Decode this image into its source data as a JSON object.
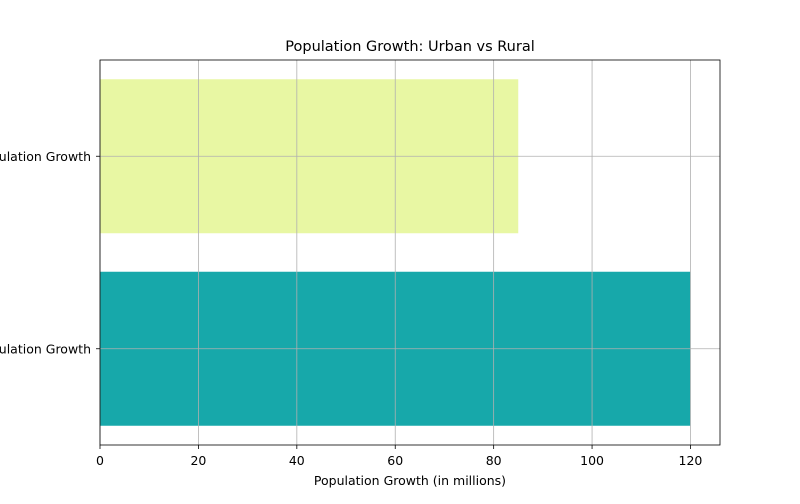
{
  "chart_data": {
    "type": "bar",
    "orientation": "horizontal",
    "title": "Population Growth: Urban vs Rural",
    "xlabel": "Population Growth (in millions)",
    "ylabel": "",
    "categories": [
      "Urban Population Growth",
      "Rural Population Growth"
    ],
    "values": [
      120,
      85
    ],
    "colors": [
      "#17a8aa",
      "#e8f7a3"
    ],
    "xlim": [
      0,
      126
    ],
    "xticks": [
      0,
      20,
      40,
      60,
      80,
      100,
      120
    ],
    "grid": true,
    "legend": "none"
  }
}
